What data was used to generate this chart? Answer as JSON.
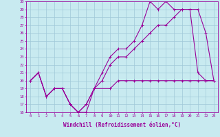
{
  "xlabel": "Windchill (Refroidissement éolien,°C)",
  "bg_color": "#c8eaf0",
  "grid_color": "#a0c8d8",
  "line_color": "#990099",
  "xlim": [
    -0.5,
    23.5
  ],
  "ylim": [
    16,
    30
  ],
  "xticks": [
    0,
    1,
    2,
    3,
    4,
    5,
    6,
    7,
    8,
    9,
    10,
    11,
    12,
    13,
    14,
    15,
    16,
    17,
    18,
    19,
    20,
    21,
    22,
    23
  ],
  "yticks": [
    16,
    17,
    18,
    19,
    20,
    21,
    22,
    23,
    24,
    25,
    26,
    27,
    28,
    29,
    30
  ],
  "line1_x": [
    0,
    1,
    2,
    3,
    4,
    5,
    6,
    7,
    8,
    10,
    11,
    12,
    13,
    14,
    15,
    16,
    17,
    18,
    19,
    20,
    21,
    22,
    23
  ],
  "line1_y": [
    20,
    21,
    18,
    19,
    19,
    17,
    16,
    16,
    19,
    19,
    20,
    20,
    20,
    20,
    20,
    20,
    20,
    20,
    20,
    20,
    20,
    20,
    20
  ],
  "line2_x": [
    0,
    1,
    2,
    3,
    4,
    5,
    6,
    7,
    8,
    9,
    10,
    11,
    12,
    13,
    14,
    15,
    16,
    17,
    18,
    19,
    20,
    21,
    22,
    23
  ],
  "line2_y": [
    20,
    21,
    18,
    19,
    19,
    17,
    16,
    17,
    19,
    20,
    22,
    23,
    23,
    24,
    25,
    26,
    27,
    27,
    28,
    29,
    29,
    29,
    26,
    20
  ],
  "line3_x": [
    0,
    1,
    2,
    3,
    4,
    5,
    6,
    7,
    8,
    9,
    10,
    11,
    12,
    13,
    14,
    15,
    16,
    17,
    18,
    19,
    20,
    21,
    22,
    23
  ],
  "line3_y": [
    20,
    21,
    18,
    19,
    19,
    17,
    16,
    17,
    19,
    21,
    23,
    24,
    24,
    25,
    27,
    30,
    29,
    30,
    29,
    29,
    29,
    21,
    20,
    20
  ]
}
